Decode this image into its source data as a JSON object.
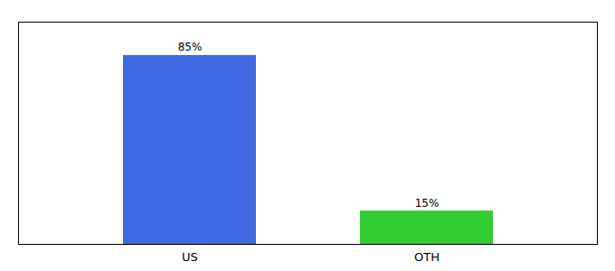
{
  "chart_data": {
    "type": "bar",
    "categories": [
      "US",
      "OTH"
    ],
    "values": [
      85,
      15
    ],
    "colors": [
      "#4169e1",
      "#33cc33"
    ],
    "data_labels": true,
    "value_labels": [
      "85%",
      "15%"
    ],
    "ylim": [
      0,
      100
    ],
    "tick_labels": "x"
  }
}
